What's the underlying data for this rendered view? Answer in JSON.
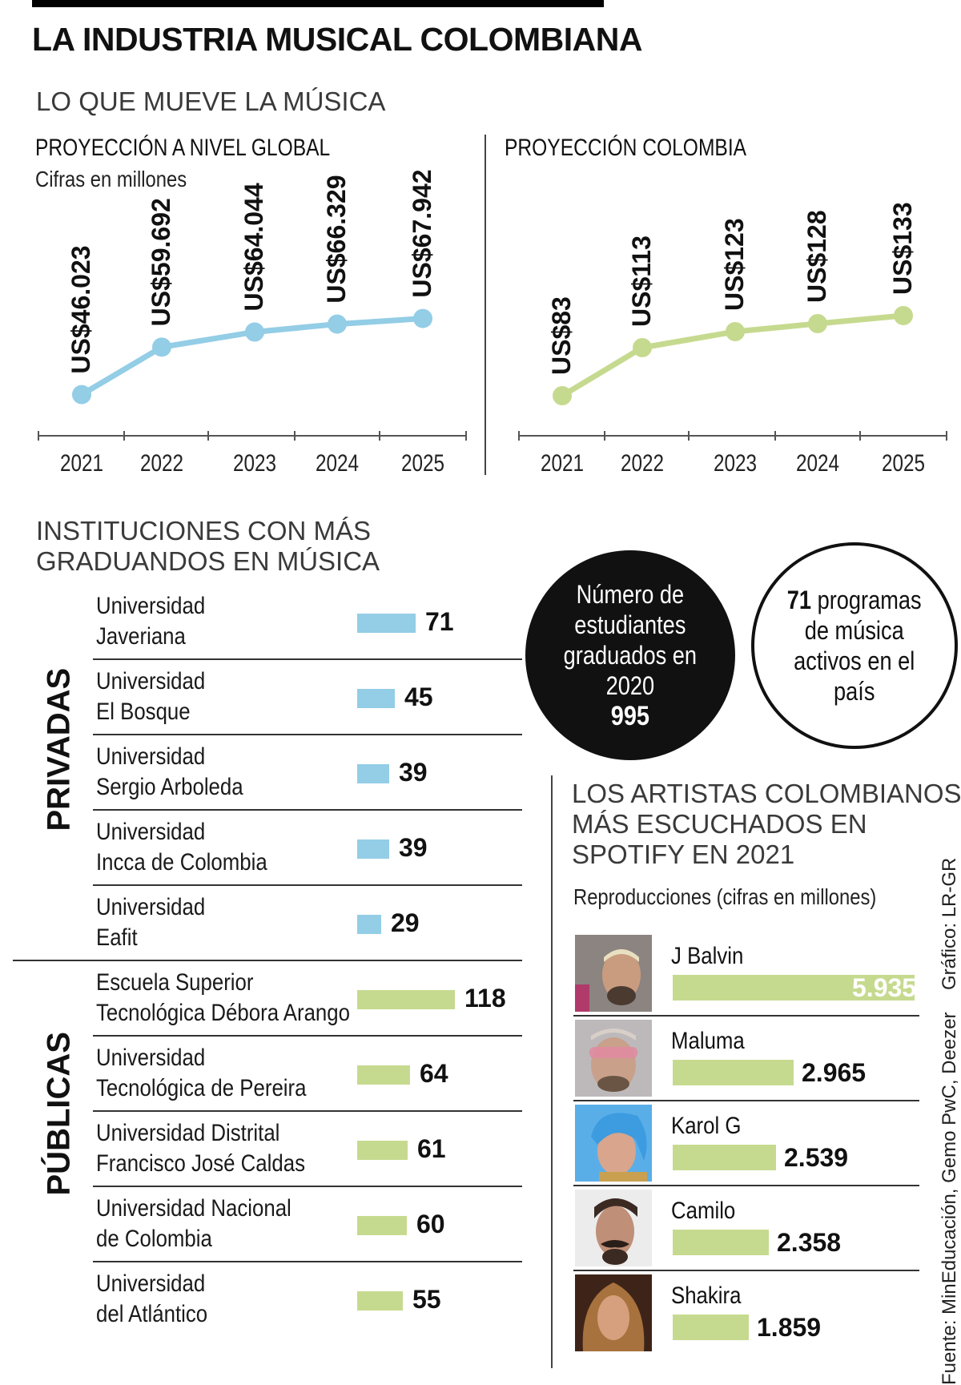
{
  "title": "LA INDUSTRIA MUSICAL COLOMBIANA",
  "section_music": "LO QUE MUEVE LA MÚSICA",
  "section_institutions": [
    "INSTITUCIONES CON MÁS",
    "GRADUANDOS EN MÚSICA"
  ],
  "section_artists": [
    "LOS ARTISTAS COLOMBIANOS",
    "MÁS ESCUCHADOS EN",
    "SPOTIFY EN 2021"
  ],
  "artists_subtitle": "Reproducciones (cifras en millones)",
  "circle_graduates": {
    "lines": [
      "Número de",
      "estudiantes",
      "graduados en",
      "2020"
    ],
    "value": "995"
  },
  "circle_programs": {
    "value": "71",
    "first_line_rest": "programas",
    "lines": [
      "de música",
      "activos en el",
      "país"
    ]
  },
  "source_text": "Fuente: MinEducación, Gemo PwC, Deezer",
  "credit_text": "Gráfico: LR-GR",
  "colors": {
    "blue": "#93cde6",
    "green": "#c6da8f",
    "dark": "#111111"
  },
  "chart_data": [
    {
      "type": "line",
      "title": "PROYECCIÓN A NIVEL GLOBAL",
      "subtitle": "Cifras en millones",
      "categories": [
        "2021",
        "2022",
        "2023",
        "2024",
        "2025"
      ],
      "values": [
        46023,
        59692,
        64044,
        66329,
        67942
      ],
      "labels": [
        "US$46.023",
        "US$59.692",
        "US$64.044",
        "US$66.329",
        "US$67.942"
      ],
      "color": "#93cde6",
      "ylim": [
        42000,
        72000
      ]
    },
    {
      "type": "line",
      "title": "PROYECCIÓN COLOMBIA",
      "subtitle": "",
      "categories": [
        "2021",
        "2022",
        "2023",
        "2024",
        "2025"
      ],
      "values": [
        83,
        113,
        123,
        128,
        133
      ],
      "labels": [
        "US$83",
        "US$113",
        "US$123",
        "US$128",
        "US$133"
      ],
      "color": "#c6da8f",
      "ylim": [
        75,
        140
      ]
    },
    {
      "type": "bar",
      "title": "INSTITUCIONES CON MÁS GRADUANDOS EN MÚSICA",
      "groups": [
        "PRIVADAS",
        "PÚBLICAS"
      ],
      "max": 118,
      "items": [
        {
          "group": "PRIVADAS",
          "name": [
            "Universidad",
            "Javeriana"
          ],
          "value": 71,
          "label": "71"
        },
        {
          "group": "PRIVADAS",
          "name": [
            "Universidad",
            "El Bosque"
          ],
          "value": 45,
          "label": "45"
        },
        {
          "group": "PRIVADAS",
          "name": [
            "Universidad",
            "Sergio Arboleda"
          ],
          "value": 39,
          "label": "39"
        },
        {
          "group": "PRIVADAS",
          "name": [
            "Universidad",
            "Incca de Colombia"
          ],
          "value": 39,
          "label": "39"
        },
        {
          "group": "PRIVADAS",
          "name": [
            "Universidad",
            "Eafit"
          ],
          "value": 29,
          "label": "29"
        },
        {
          "group": "PÚBLICAS",
          "name": [
            "Escuela Superior",
            "Tecnológica Débora Arango"
          ],
          "value": 118,
          "label": "118"
        },
        {
          "group": "PÚBLICAS",
          "name": [
            "Universidad",
            "Tecnológica de Pereira"
          ],
          "value": 64,
          "label": "64"
        },
        {
          "group": "PÚBLICAS",
          "name": [
            "Universidad Distrital",
            "Francisco José Caldas"
          ],
          "value": 61,
          "label": "61"
        },
        {
          "group": "PÚBLICAS",
          "name": [
            "Universidad Nacional",
            "de Colombia"
          ],
          "value": 60,
          "label": "60"
        },
        {
          "group": "PÚBLICAS",
          "name": [
            "Universidad",
            "del Atlántico"
          ],
          "value": 55,
          "label": "55"
        }
      ]
    },
    {
      "type": "bar",
      "title": "LOS ARTISTAS COLOMBIANOS MÁS ESCUCHADOS EN SPOTIFY EN 2021",
      "ylabel": "Reproducciones (cifras en millones)",
      "max": 5935,
      "items": [
        {
          "name": "J Balvin",
          "value": 5935,
          "label": "5.935"
        },
        {
          "name": "Maluma",
          "value": 2965,
          "label": "2.965"
        },
        {
          "name": "Karol G",
          "value": 2539,
          "label": "2.539"
        },
        {
          "name": "Camilo",
          "value": 2358,
          "label": "2.358"
        },
        {
          "name": "Shakira",
          "value": 1859,
          "label": "1.859"
        }
      ]
    }
  ]
}
